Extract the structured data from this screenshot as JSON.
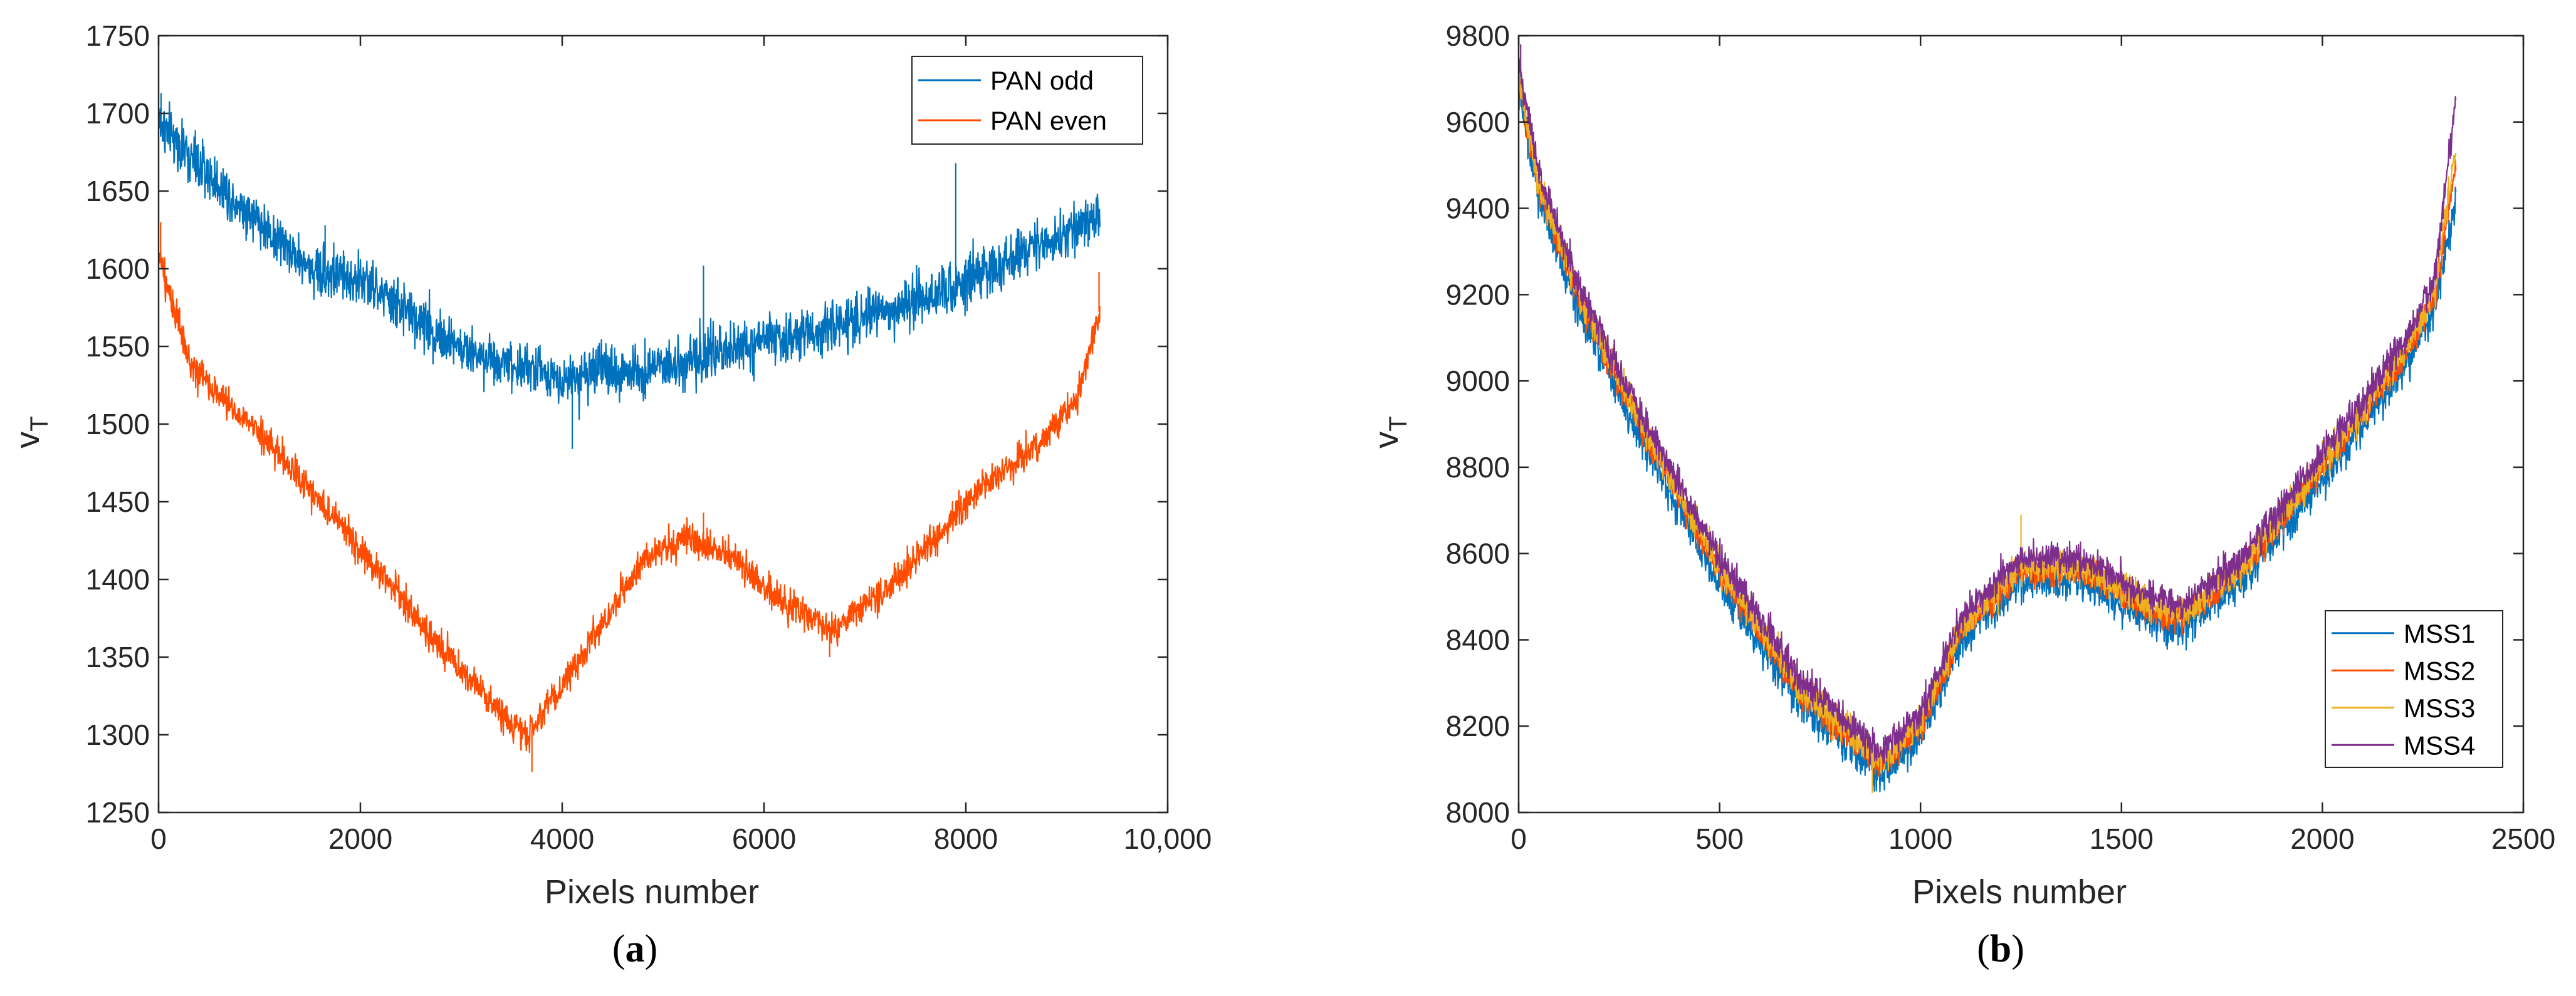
{
  "chart_data": [
    {
      "type": "line",
      "panel_label": "(a)",
      "panel_letter": "a",
      "title": "",
      "xlabel": "Pixels number",
      "ylabel": "v",
      "ylabel_subscript": "T",
      "xlim": [
        0,
        10000
      ],
      "ylim": [
        1250,
        1750
      ],
      "x_ticks": [
        0,
        2000,
        4000,
        6000,
        8000,
        10000
      ],
      "x_tick_labels": [
        "0",
        "2000",
        "4000",
        "6000",
        "8000",
        "10,000"
      ],
      "y_ticks": [
        1250,
        1300,
        1350,
        1400,
        1450,
        1500,
        1550,
        1600,
        1650,
        1700,
        1750
      ],
      "y_tick_labels": [
        "1250",
        "1300",
        "1350",
        "1400",
        "1450",
        "1500",
        "1550",
        "1600",
        "1650",
        "1700",
        "1750"
      ],
      "grid": false,
      "legend_position": "top-right",
      "x_max_data": 9330,
      "series": [
        {
          "name": "PAN odd",
          "color": "#0072BD",
          "noise": 14,
          "points": [
            [
              0,
              1695
            ],
            [
              300,
              1672
            ],
            [
              1000,
              1630
            ],
            [
              1500,
              1600
            ],
            [
              2000,
              1593
            ],
            [
              3000,
              1548
            ],
            [
              4000,
              1530
            ],
            [
              5000,
              1537
            ],
            [
              6000,
              1552
            ],
            [
              7000,
              1568
            ],
            [
              8000,
              1593
            ],
            [
              9000,
              1622
            ],
            [
              9330,
              1637
            ]
          ],
          "spikes": [
            [
              7900,
              1668
            ],
            [
              5400,
              1602
            ],
            [
              4100,
              1484
            ],
            [
              1650,
              1628
            ],
            [
              25,
              1713
            ]
          ]
        },
        {
          "name": "PAN even",
          "color": "#FF4C00",
          "noise": 9,
          "points": [
            [
              0,
              1610
            ],
            [
              300,
              1540
            ],
            [
              700,
              1512
            ],
            [
              1200,
              1480
            ],
            [
              2000,
              1420
            ],
            [
              3000,
              1340
            ],
            [
              3650,
              1298
            ],
            [
              4200,
              1352
            ],
            [
              4800,
              1412
            ],
            [
              5200,
              1427
            ],
            [
              5600,
              1418
            ],
            [
              6200,
              1384
            ],
            [
              6700,
              1368
            ],
            [
              7300,
              1398
            ],
            [
              8000,
              1450
            ],
            [
              8700,
              1487
            ],
            [
              9100,
              1515
            ],
            [
              9330,
              1575
            ]
          ],
          "spikes": [
            [
              3700,
              1276
            ],
            [
              5400,
              1443
            ],
            [
              6650,
              1350
            ],
            [
              9320,
              1598
            ],
            [
              20,
              1630
            ]
          ]
        }
      ]
    },
    {
      "type": "line",
      "panel_label": "(b)",
      "panel_letter": "b",
      "title": "",
      "xlabel": "Pixels number",
      "ylabel": "v",
      "ylabel_subscript": "T",
      "xlim": [
        0,
        2500
      ],
      "ylim": [
        8000,
        9800
      ],
      "x_ticks": [
        0,
        500,
        1000,
        1500,
        2000,
        2500
      ],
      "x_tick_labels": [
        "0",
        "500",
        "1000",
        "1500",
        "2000",
        "2500"
      ],
      "y_ticks": [
        8000,
        8200,
        8400,
        8600,
        8800,
        9000,
        9200,
        9400,
        9600,
        9800
      ],
      "y_tick_labels": [
        "8000",
        "8200",
        "8400",
        "8600",
        "8800",
        "9000",
        "9200",
        "9400",
        "9600",
        "9800"
      ],
      "grid": false,
      "legend_position": "bottom-right",
      "x_max_data": 2332,
      "series": [
        {
          "name": "MSS1",
          "color": "#0072BD",
          "noise": 38,
          "offset": -25,
          "points": [
            [
              0,
              9700
            ],
            [
              50,
              9450
            ],
            [
              150,
              9190
            ],
            [
              300,
              8900
            ],
            [
              500,
              8560
            ],
            [
              700,
              8280
            ],
            [
              900,
              8110
            ],
            [
              1000,
              8200
            ],
            [
              1100,
              8420
            ],
            [
              1250,
              8560
            ],
            [
              1400,
              8560
            ],
            [
              1550,
              8480
            ],
            [
              1650,
              8450
            ],
            [
              1800,
              8560
            ],
            [
              2000,
              8800
            ],
            [
              2200,
              9050
            ],
            [
              2280,
              9200
            ],
            [
              2332,
              9450
            ]
          ],
          "spikes": []
        },
        {
          "name": "MSS2",
          "color": "#FF4C00",
          "noise": 30,
          "offset": 0,
          "points": [
            [
              0,
              9700
            ],
            [
              50,
              9450
            ],
            [
              150,
              9190
            ],
            [
              300,
              8900
            ],
            [
              500,
              8560
            ],
            [
              700,
              8280
            ],
            [
              900,
              8110
            ],
            [
              1000,
              8200
            ],
            [
              1100,
              8420
            ],
            [
              1250,
              8560
            ],
            [
              1400,
              8560
            ],
            [
              1550,
              8480
            ],
            [
              1650,
              8450
            ],
            [
              1800,
              8560
            ],
            [
              2000,
              8800
            ],
            [
              2200,
              9050
            ],
            [
              2280,
              9200
            ],
            [
              2332,
              9500
            ]
          ],
          "spikes": []
        },
        {
          "name": "MSS3",
          "color": "#EDB120",
          "noise": 32,
          "offset": 10,
          "points": [
            [
              0,
              9700
            ],
            [
              50,
              9450
            ],
            [
              150,
              9190
            ],
            [
              300,
              8900
            ],
            [
              500,
              8560
            ],
            [
              700,
              8280
            ],
            [
              900,
              8110
            ],
            [
              1000,
              8200
            ],
            [
              1100,
              8420
            ],
            [
              1250,
              8560
            ],
            [
              1400,
              8560
            ],
            [
              1550,
              8480
            ],
            [
              1650,
              8450
            ],
            [
              1800,
              8560
            ],
            [
              2000,
              8800
            ],
            [
              2200,
              9050
            ],
            [
              2280,
              9200
            ],
            [
              2332,
              9530
            ]
          ],
          "spikes": [
            [
              1250,
              8690
            ],
            [
              880,
              8045
            ]
          ]
        },
        {
          "name": "MSS4",
          "color": "#7E2F8E",
          "noise": 30,
          "offset": 20,
          "points": [
            [
              0,
              9720
            ],
            [
              50,
              9460
            ],
            [
              150,
              9200
            ],
            [
              300,
              8910
            ],
            [
              500,
              8570
            ],
            [
              700,
              8290
            ],
            [
              900,
              8120
            ],
            [
              1000,
              8210
            ],
            [
              1100,
              8430
            ],
            [
              1250,
              8570
            ],
            [
              1400,
              8570
            ],
            [
              1550,
              8490
            ],
            [
              1650,
              8460
            ],
            [
              1800,
              8570
            ],
            [
              2000,
              8810
            ],
            [
              2200,
              9060
            ],
            [
              2280,
              9220
            ],
            [
              2332,
              9640
            ]
          ],
          "spikes": [
            [
              5,
              9780
            ],
            [
              2332,
              9660
            ]
          ]
        }
      ]
    }
  ]
}
